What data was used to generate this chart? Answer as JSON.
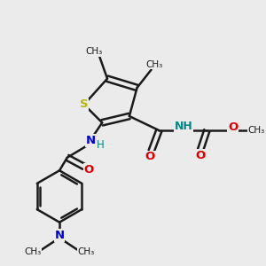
{
  "background_color": "#ebebeb",
  "bond_color": "#1a1a1a",
  "S_color": "#b8b800",
  "N_color": "#0000dd",
  "O_color": "#dd0000",
  "NH_color": "#008888",
  "line_width": 1.8,
  "figsize": [
    3.0,
    3.0
  ],
  "dpi": 100,
  "xlim": [
    0,
    10
  ],
  "ylim": [
    0,
    10
  ]
}
